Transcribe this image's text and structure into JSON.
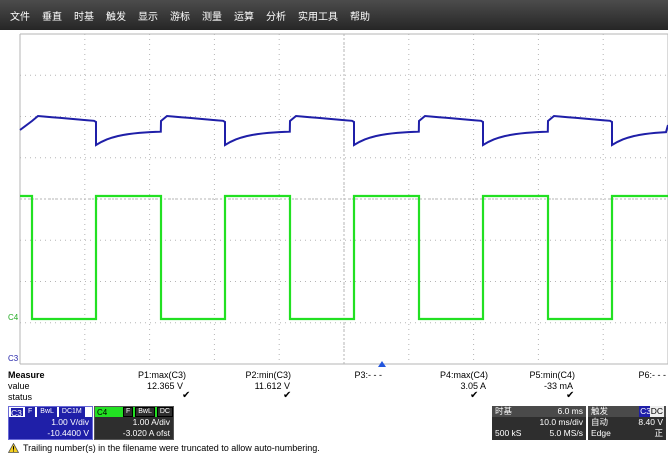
{
  "menu": [
    "文件",
    "垂直",
    "时基",
    "触发",
    "显示",
    "游标",
    "测量",
    "运算",
    "分析",
    "实用工具",
    "帮助"
  ],
  "screen": {
    "labels": {
      "c4_marker": "C4",
      "c3_marker": "C3"
    },
    "colors": {
      "c3": "#1f1fa8",
      "c4": "#22e022",
      "grid": "#b5b5b5",
      "trigger": "#2255dd"
    }
  },
  "measure": {
    "title": "Measure",
    "row_value": "value",
    "row_status": "status",
    "params": [
      {
        "name": "P1:max(C3)",
        "value": "12.365 V",
        "status": "✔"
      },
      {
        "name": "P2:min(C3)",
        "value": "11.612 V",
        "status": "✔"
      },
      {
        "name": "P3:- - -",
        "value": "",
        "status": ""
      },
      {
        "name": "P4:max(C4)",
        "value": "3.05 A",
        "status": "✔"
      },
      {
        "name": "P5:min(C4)",
        "value": "-33 mA",
        "status": "✔"
      },
      {
        "name": "P6:- - -",
        "value": "",
        "status": ""
      }
    ]
  },
  "channels": {
    "c3": {
      "label": "C3",
      "tags": [
        "F",
        "BwL",
        "DC1M"
      ],
      "scale": "1.00 V/div",
      "offset": "-10.4400 V",
      "color": "#1f1fa8"
    },
    "c4": {
      "label": "C4",
      "tags": [
        "F",
        "BwL",
        "DC"
      ],
      "scale": "1.00 A/div",
      "offset": "-3.020 A ofst",
      "color": "#22e022"
    }
  },
  "timebase": {
    "label": "时基",
    "delay": "6.0 ms",
    "scale": "10.0 ms/div",
    "samples": "500 kS",
    "rate": "5.0 MS/s"
  },
  "trigger": {
    "label": "触发",
    "source": "C3",
    "coupling": "DC",
    "mode": "自动",
    "level": "8.40 V",
    "type": "Edge",
    "slope": "正"
  },
  "status_message": "Trailing number(s) in the filename were truncated to allow auto-numbering."
}
